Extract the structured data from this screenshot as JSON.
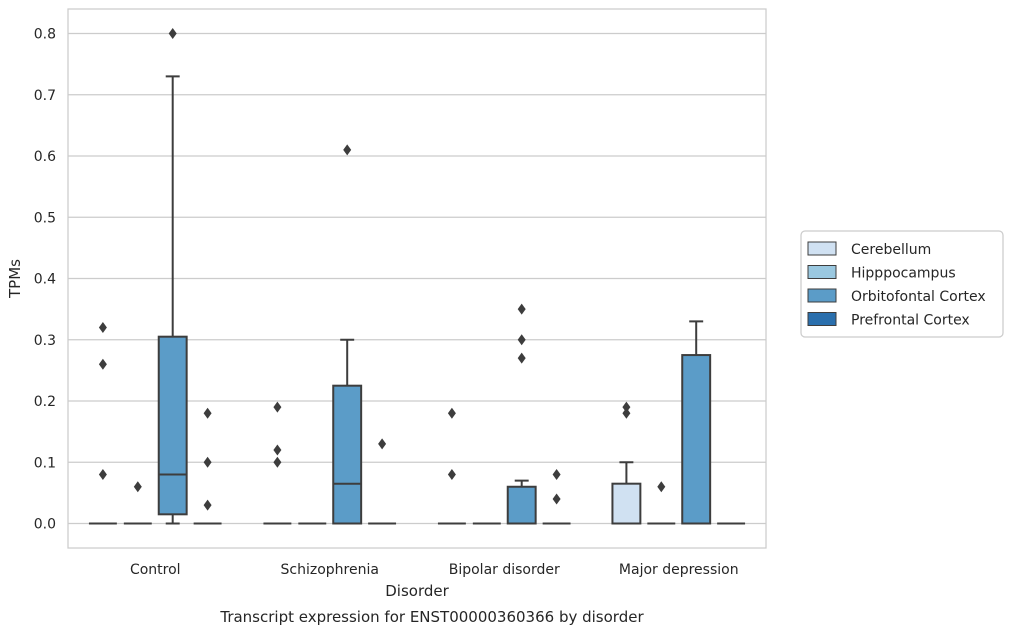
{
  "chart_data": {
    "type": "boxplot",
    "caption": "Transcript expression for ENST00000360366 by disorder",
    "xlabel": "Disorder",
    "ylabel": "TPMs",
    "ylim": [
      -0.04,
      0.84
    ],
    "yticks": [
      0.0,
      0.1,
      0.2,
      0.3,
      0.4,
      0.5,
      0.6,
      0.7,
      0.8
    ],
    "yticklabels": [
      "0.0",
      "0.1",
      "0.2",
      "0.3",
      "0.4",
      "0.5",
      "0.6",
      "0.7",
      "0.8"
    ],
    "grid": "horizontal",
    "legend_position": "right",
    "categories": [
      "Control",
      "Schizophrenia",
      "Bipolar disorder",
      "Major depression"
    ],
    "series": [
      {
        "name": "Cerebellum",
        "color": "#d0e1f2",
        "boxes": [
          {
            "category": "Control",
            "q1": 0.0,
            "median": 0.0,
            "q3": 0.0,
            "whisker_low": 0.0,
            "whisker_high": 0.0,
            "outliers": [
              0.32,
              0.26,
              0.08
            ]
          },
          {
            "category": "Schizophrenia",
            "q1": 0.0,
            "median": 0.0,
            "q3": 0.0,
            "whisker_low": 0.0,
            "whisker_high": 0.0,
            "outliers": [
              0.19,
              0.12,
              0.1
            ]
          },
          {
            "category": "Bipolar disorder",
            "q1": 0.0,
            "median": 0.0,
            "q3": 0.0,
            "whisker_low": 0.0,
            "whisker_high": 0.0,
            "outliers": [
              0.18,
              0.08
            ]
          },
          {
            "category": "Major depression",
            "q1": 0.0,
            "median": 0.0,
            "q3": 0.065,
            "whisker_low": 0.0,
            "whisker_high": 0.1,
            "outliers": [
              0.19,
              0.18
            ]
          }
        ]
      },
      {
        "name": "Hipppocampus",
        "color": "#9ac8e0",
        "boxes": [
          {
            "category": "Control",
            "q1": 0.0,
            "median": 0.0,
            "q3": 0.0,
            "whisker_low": 0.0,
            "whisker_high": 0.0,
            "outliers": [
              0.06
            ]
          },
          {
            "category": "Schizophrenia",
            "q1": 0.0,
            "median": 0.0,
            "q3": 0.0,
            "whisker_low": 0.0,
            "whisker_high": 0.0,
            "outliers": []
          },
          {
            "category": "Bipolar disorder",
            "q1": 0.0,
            "median": 0.0,
            "q3": 0.0,
            "whisker_low": 0.0,
            "whisker_high": 0.0,
            "outliers": []
          },
          {
            "category": "Major depression",
            "q1": 0.0,
            "median": 0.0,
            "q3": 0.0,
            "whisker_low": 0.0,
            "whisker_high": 0.0,
            "outliers": [
              0.06
            ]
          }
        ]
      },
      {
        "name": "Orbitofontal Cortex",
        "color": "#5b9cc8",
        "boxes": [
          {
            "category": "Control",
            "q1": 0.015,
            "median": 0.08,
            "q3": 0.305,
            "whisker_low": 0.0,
            "whisker_high": 0.73,
            "outliers": [
              0.8
            ]
          },
          {
            "category": "Schizophrenia",
            "q1": 0.0,
            "median": 0.065,
            "q3": 0.225,
            "whisker_low": 0.0,
            "whisker_high": 0.3,
            "outliers": [
              0.61
            ]
          },
          {
            "category": "Bipolar disorder",
            "q1": 0.0,
            "median": 0.0,
            "q3": 0.06,
            "whisker_low": 0.0,
            "whisker_high": 0.07,
            "outliers": [
              0.35,
              0.3,
              0.27
            ]
          },
          {
            "category": "Major depression",
            "q1": 0.0,
            "median": 0.0,
            "q3": 0.275,
            "whisker_low": 0.0,
            "whisker_high": 0.33,
            "outliers": []
          }
        ]
      },
      {
        "name": "Prefrontal Cortex",
        "color": "#2a6fad",
        "boxes": [
          {
            "category": "Control",
            "q1": 0.0,
            "median": 0.0,
            "q3": 0.0,
            "whisker_low": 0.0,
            "whisker_high": 0.0,
            "outliers": [
              0.18,
              0.1,
              0.03
            ]
          },
          {
            "category": "Schizophrenia",
            "q1": 0.0,
            "median": 0.0,
            "q3": 0.0,
            "whisker_low": 0.0,
            "whisker_high": 0.0,
            "outliers": [
              0.13
            ]
          },
          {
            "category": "Bipolar disorder",
            "q1": 0.0,
            "median": 0.0,
            "q3": 0.0,
            "whisker_low": 0.0,
            "whisker_high": 0.0,
            "outliers": [
              0.08,
              0.04
            ]
          },
          {
            "category": "Major depression",
            "q1": 0.0,
            "median": 0.0,
            "q3": 0.0,
            "whisker_low": 0.0,
            "whisker_high": 0.0,
            "outliers": []
          }
        ]
      }
    ]
  }
}
